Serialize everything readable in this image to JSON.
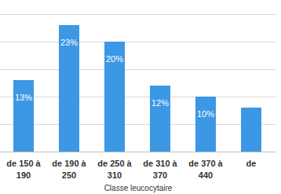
{
  "chart_data": {
    "type": "bar",
    "x_label": "Classe leucocytaire",
    "categories": [
      "de 150 à 190",
      "de 190 à 250",
      "de 250 à 310",
      "de 310 à 370",
      "de 370 à 440",
      "de"
    ],
    "values": [
      13,
      23,
      20,
      12,
      10,
      8
    ],
    "value_labels": [
      "13%",
      "23%",
      "20%",
      "12%",
      "10%",
      null
    ],
    "color": "#3c97e4",
    "ylim": [
      0,
      25
    ],
    "yticks": [
      0,
      5,
      10,
      15,
      20,
      25
    ],
    "grid": true,
    "data_labels": true,
    "tick_labels": "x"
  }
}
